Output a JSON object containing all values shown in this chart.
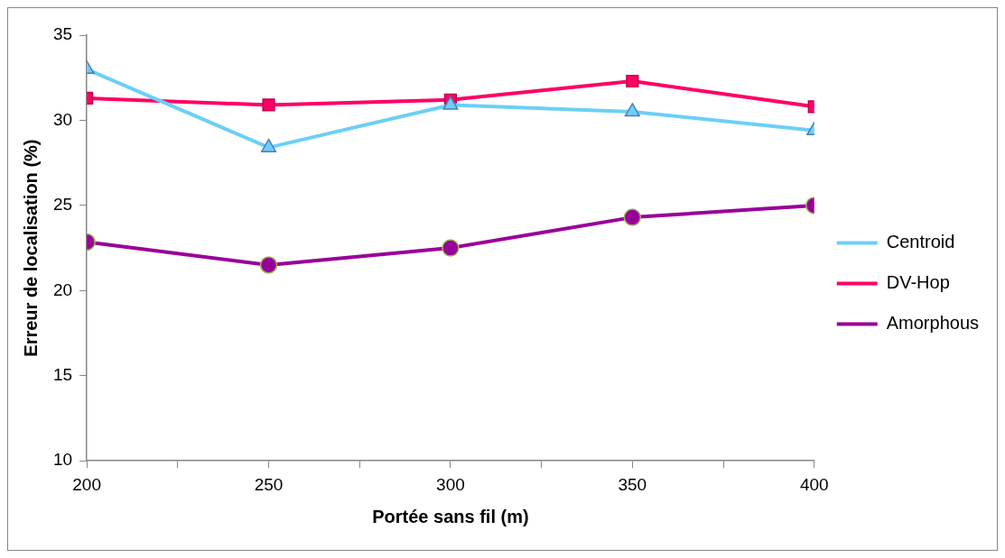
{
  "chart_data": {
    "type": "line",
    "xlabel": "Portée sans fil (m)",
    "ylabel": "Erreur de localisation (%)",
    "x": [
      200,
      250,
      300,
      350,
      400
    ],
    "xlim": [
      200,
      400
    ],
    "xticks": [
      200,
      {
        "value": 225,
        "label": null
      },
      250,
      {
        "value": 275,
        "label": null
      },
      300,
      {
        "value": 325,
        "label": null
      },
      350,
      {
        "value": 375,
        "label": null
      },
      400
    ],
    "ylim": [
      10,
      35
    ],
    "yticks": [
      10,
      15,
      20,
      25,
      30,
      35
    ],
    "grid": false,
    "legend": "right",
    "series": [
      {
        "name": "Centroid",
        "color": "#6ccff6",
        "marker": "triangle",
        "values": [
          33.0,
          28.4,
          30.9,
          30.5,
          29.4
        ]
      },
      {
        "name": "DV-Hop",
        "color": "#ff0066",
        "marker": "square",
        "values": [
          31.3,
          30.9,
          31.2,
          32.3,
          30.8
        ]
      },
      {
        "name": "Amorphous",
        "color": "#990099",
        "marker": "circle",
        "values": [
          22.85,
          21.5,
          22.5,
          24.3,
          25.0
        ]
      }
    ]
  }
}
